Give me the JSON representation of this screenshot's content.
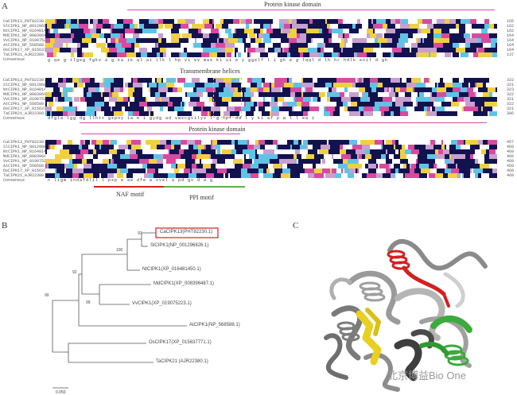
{
  "panels": {
    "a": "A",
    "b": "B",
    "c": "C"
  },
  "alignment": {
    "block1": {
      "domain_title": "Protein kinase domain",
      "numbers": [
        "165",
        "162",
        "162",
        "164",
        "164",
        "164",
        "164",
        "137"
      ],
      "consensus": "g qe g tlgeg fgkv a    g   ka ik        ql  ai tlk l hp  vi    ev  mas ki ui e y ggelf l   i   gk  e   g  lqql d  lh  hr  hdlk  enil  d  gh"
    },
    "block2": {
      "domain_title": "Transmembrane helices",
      "numbers": [
        "322",
        "321",
        "323",
        "322",
        "321",
        "322",
        "321",
        "306"
      ],
      "consensus": "dfgla lgg    dg llhtt gspny ia e i  gydg  ad vwscgvilyv  l g lpf dd  l y ki     af  p w  l        l      ea        i"
    },
    "block3": {
      "domain_title": "Protein kinase domain",
      "numbers": [
        "457",
        "460",
        "460",
        "460",
        "460",
        "458",
        "460",
        "460"
      ],
      "consensus": "  n ligm     indafdlil          l         psp       e       ae dfe   a   vvel    a   pd   gv      d          a         g"
    },
    "seq_names": [
      "CaCIPK13_PHT82230.1",
      "SlCIPK1_NP_001296826.1",
      "NtCIPK1_NP_016481450.1",
      "MdCIPK1_NP_008396487.1",
      "VvCIPK1_NP_019075223.1",
      "AtCIPK1_NP_568588.1",
      "OsCIPK17_XP_015637771.1",
      "TaCIPK21_AJR22380.1",
      "Consensus"
    ],
    "motifs": {
      "naf": "NAF motif",
      "ppi": "PPI motif"
    }
  },
  "tree": {
    "taxa": [
      "CaCIPK13(PHT82230.1)",
      "SlCIPK1(NP_001296826.1)",
      "NtCIPK1(XP_016481450.1)",
      "MdCIPK1(XP_008396487.1)",
      "VvCIPK1(XP_019075223.1)",
      "AtCIPK1(NP_568588.1)",
      "OsCIPK17(XP_015637771.1)",
      "TaCIPK21 (AJR22380.1)"
    ],
    "bootstrap": [
      "97",
      "100",
      "92",
      "99",
      "99"
    ],
    "scale": "0.050"
  },
  "watermark": "北京博益Bio One",
  "colors": {
    "pink_line": "#d44bb0",
    "red_line": "#d32020",
    "green_line": "#60b040",
    "highlight_box": "#d02020",
    "navy": "#12124f",
    "magenta": "#d84aa0",
    "cyan": "#5ec4e6",
    "yellow_dash": "#e8d020"
  }
}
